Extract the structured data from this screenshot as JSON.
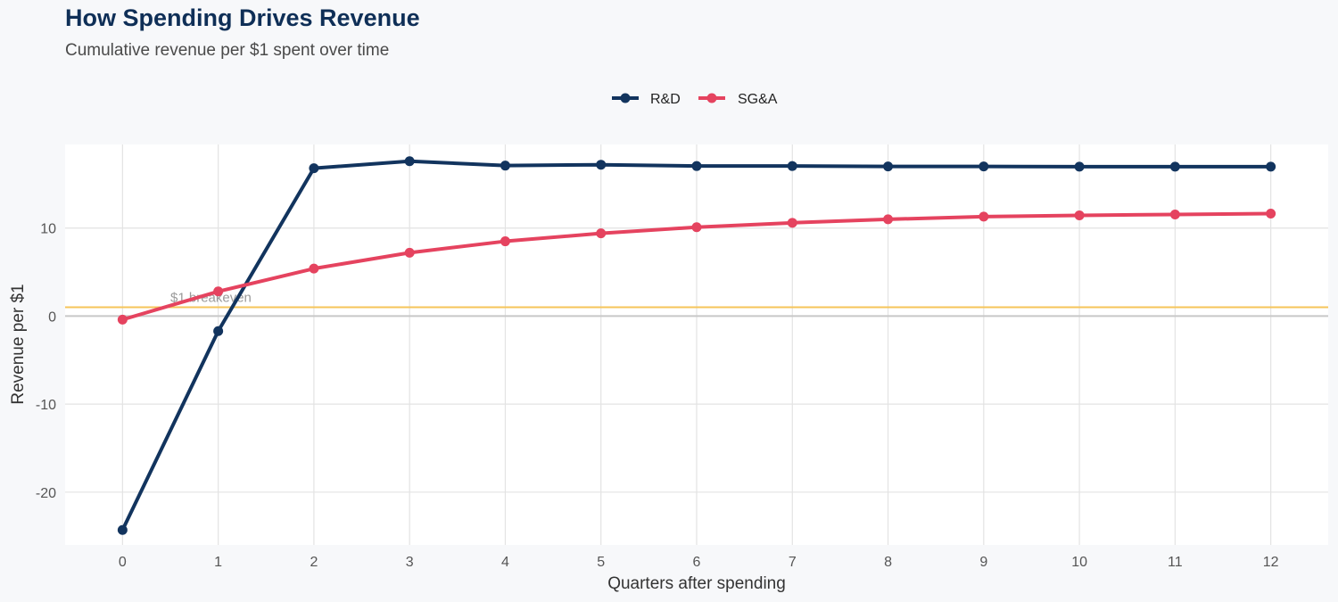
{
  "chart_data": {
    "type": "line",
    "title": "How Spending Drives Revenue",
    "subtitle": "Cumulative revenue per $1 spent over time",
    "xlabel": "Quarters after spending",
    "ylabel": "Revenue per $1",
    "x": [
      0,
      1,
      2,
      3,
      4,
      5,
      6,
      7,
      8,
      9,
      10,
      11,
      12
    ],
    "xlim": [
      -0.6,
      12.6
    ],
    "ylim": [
      -26,
      19.5
    ],
    "y_ticks": [
      -20,
      -10,
      0,
      10
    ],
    "y_tick_labels": [
      "-20",
      "-10",
      "0",
      "10"
    ],
    "x_tick_labels": [
      "0",
      "1",
      "2",
      "3",
      "4",
      "5",
      "6",
      "7",
      "8",
      "9",
      "10",
      "11",
      "12"
    ],
    "grid": true,
    "legend_position": "top-center",
    "series": [
      {
        "name": "R&D",
        "color": "#12345e",
        "values": [
          -24.3,
          -1.7,
          16.8,
          17.6,
          17.1,
          17.2,
          17.05,
          17.05,
          17.0,
          17.0,
          16.98,
          16.98,
          16.98
        ]
      },
      {
        "name": "SG&A",
        "color": "#e5435f",
        "values": [
          -0.4,
          2.8,
          5.4,
          7.2,
          8.5,
          9.4,
          10.1,
          10.6,
          11.0,
          11.3,
          11.45,
          11.55,
          11.65
        ]
      }
    ],
    "reference_line": {
      "y": 1,
      "label": "$1 breakeven",
      "color": "#f6c55a"
    },
    "zero_line_color": "#c8c8c8"
  }
}
